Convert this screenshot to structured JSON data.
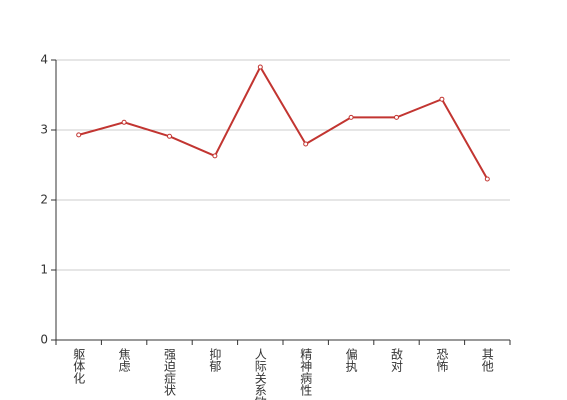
{
  "chart_data": {
    "type": "line",
    "categories": [
      "躯体化",
      "焦虑",
      "强迫症状",
      "抑郁",
      "人际关系敏感",
      "精神病性",
      "偏执",
      "敌对",
      "恐怖",
      "其他"
    ],
    "series": [
      {
        "color": "#c23531",
        "values": [
          2.93,
          3.11,
          2.91,
          2.63,
          3.9,
          2.8,
          3.18,
          3.18,
          3.44,
          2.3
        ]
      }
    ],
    "ylim": [
      0,
      4
    ],
    "yticks": [
      0,
      1,
      2,
      3,
      4
    ],
    "grid": true
  }
}
